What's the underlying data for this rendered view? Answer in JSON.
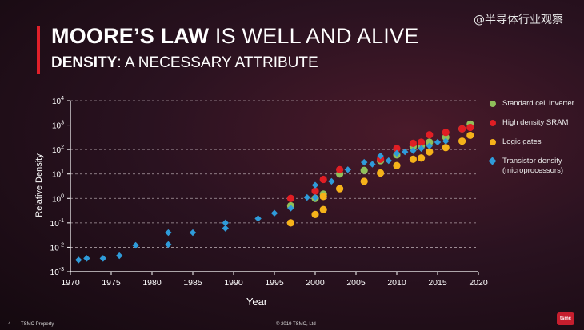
{
  "watermark": "@半导体行业观察",
  "slide": {
    "title_bold": "MOORE’S LAW",
    "title_rest": " IS WELL AND ALIVE",
    "subtitle_bold": "DENSITY",
    "subtitle_rest": ": A NECESSARY ATTRIBUTE"
  },
  "footer": {
    "page_number": "4",
    "property": "TSMC Property",
    "copyright": "© 2019 TSMC, Ltd",
    "logo_text": "tsmc"
  },
  "chart_data": {
    "type": "scatter",
    "xlabel": "Year",
    "ylabel": "Relative Density",
    "xlim": [
      1970,
      2020
    ],
    "xticks": [
      1970,
      1975,
      1980,
      1985,
      1990,
      1995,
      2000,
      2005,
      2010,
      2015,
      2020
    ],
    "y_scale": "log",
    "ylim_exponent": [
      -3,
      4
    ],
    "yticks": [
      {
        "base": "10",
        "exp": "4"
      },
      {
        "base": "10",
        "exp": "3"
      },
      {
        "base": "10",
        "exp": "2"
      },
      {
        "base": "10",
        "exp": "1"
      },
      {
        "base": "10",
        "exp": "0"
      },
      {
        "base": "10",
        "exp": "-1"
      },
      {
        "base": "10",
        "exp": "-2"
      },
      {
        "base": "10",
        "exp": "-3"
      }
    ],
    "grid": "horizontal dashed",
    "legend_position": "right",
    "series": [
      {
        "name": "Standard cell inverter",
        "marker": "circle",
        "color": "#8fbf5a",
        "points": [
          [
            1997,
            0.5
          ],
          [
            2000,
            1.0
          ],
          [
            2001,
            1.5
          ],
          [
            2003,
            10
          ],
          [
            2006,
            14
          ],
          [
            2008,
            35
          ],
          [
            2010,
            60
          ],
          [
            2012,
            130
          ],
          [
            2013,
            140
          ],
          [
            2014,
            200
          ],
          [
            2016,
            320
          ],
          [
            2018,
            700
          ],
          [
            2019,
            1100
          ]
        ]
      },
      {
        "name": "High density SRAM",
        "marker": "circle",
        "color": "#e01e24",
        "points": [
          [
            1997,
            1.0
          ],
          [
            2000,
            2.0
          ],
          [
            2001,
            6
          ],
          [
            2003,
            15
          ],
          [
            2008,
            40
          ],
          [
            2010,
            110
          ],
          [
            2012,
            180
          ],
          [
            2013,
            200
          ],
          [
            2014,
            400
          ],
          [
            2016,
            500
          ],
          [
            2018,
            700
          ],
          [
            2019,
            800
          ]
        ]
      },
      {
        "name": "Logic gates",
        "marker": "circle",
        "color": "#f5b21a",
        "points": [
          [
            1997,
            0.1
          ],
          [
            2000,
            0.22
          ],
          [
            2001,
            0.35
          ],
          [
            2001,
            1.2
          ],
          [
            2003,
            2.5
          ],
          [
            2006,
            5
          ],
          [
            2008,
            11
          ],
          [
            2010,
            22
          ],
          [
            2012,
            40
          ],
          [
            2013,
            45
          ],
          [
            2014,
            80
          ],
          [
            2016,
            120
          ],
          [
            2018,
            220
          ],
          [
            2019,
            380
          ]
        ]
      },
      {
        "name": "Transistor density (microprocessors)",
        "marker": "diamond",
        "color": "#2f9bd9",
        "points": [
          [
            1971,
            0.003
          ],
          [
            1972,
            0.0035
          ],
          [
            1974,
            0.0035
          ],
          [
            1976,
            0.0045
          ],
          [
            1978,
            0.012
          ],
          [
            1982,
            0.013
          ],
          [
            1982,
            0.04
          ],
          [
            1985,
            0.04
          ],
          [
            1989,
            0.06
          ],
          [
            1989,
            0.1
          ],
          [
            1993,
            0.15
          ],
          [
            1995,
            0.25
          ],
          [
            1997,
            0.4
          ],
          [
            1999,
            1.1
          ],
          [
            2000,
            1.1
          ],
          [
            2000,
            3.5
          ],
          [
            2002,
            5
          ],
          [
            2004,
            15
          ],
          [
            2006,
            30
          ],
          [
            2007,
            25
          ],
          [
            2008,
            55
          ],
          [
            2009,
            35
          ],
          [
            2010,
            70
          ],
          [
            2011,
            80
          ],
          [
            2012,
            90
          ],
          [
            2013,
            110
          ],
          [
            2014,
            140
          ],
          [
            2015,
            200
          ],
          [
            2016,
            220
          ]
        ]
      }
    ]
  }
}
